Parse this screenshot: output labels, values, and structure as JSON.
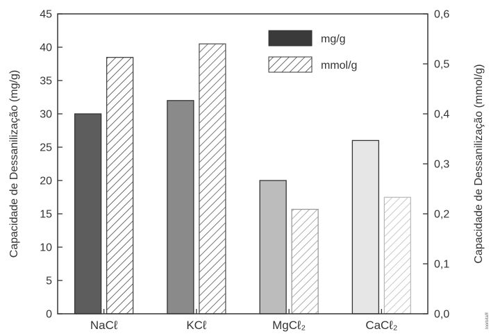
{
  "chart_data": {
    "type": "bar",
    "categories": [
      "NaCℓ",
      "KCℓ",
      "MgCℓ₂",
      "CaCℓ₂"
    ],
    "series": [
      {
        "name": "mg/g",
        "axis": "left",
        "pattern": "solid",
        "values": [
          30,
          32,
          20,
          26
        ],
        "colors": [
          "#5d5d5d",
          "#8a8a8a",
          "#bcbcbc",
          "#e6e6e6"
        ]
      },
      {
        "name": "mmol/g",
        "axis": "right",
        "pattern": "hatched",
        "values": [
          0.513,
          0.54,
          0.209,
          0.233
        ],
        "colors": [
          "#444444",
          "#555555",
          "#999999",
          "#bbbbbb"
        ]
      }
    ],
    "ylabel": "Capacidade de Dessanilização (mg/g)",
    "y2label": "Capacidade de Dessanilização (mmol/g)",
    "ylim": [
      0,
      45
    ],
    "y2lim": [
      0,
      0.6
    ],
    "yticks": [
      "0",
      "5",
      "10",
      "15",
      "20",
      "25",
      "30",
      "35",
      "40",
      "45"
    ],
    "y2ticks": [
      "0,0",
      "0,1",
      "0,2",
      "0,3",
      "0,4",
      "0,5",
      "0,6"
    ],
    "legend_position": "top-right",
    "grid": false
  },
  "credit": "Inorbita®"
}
